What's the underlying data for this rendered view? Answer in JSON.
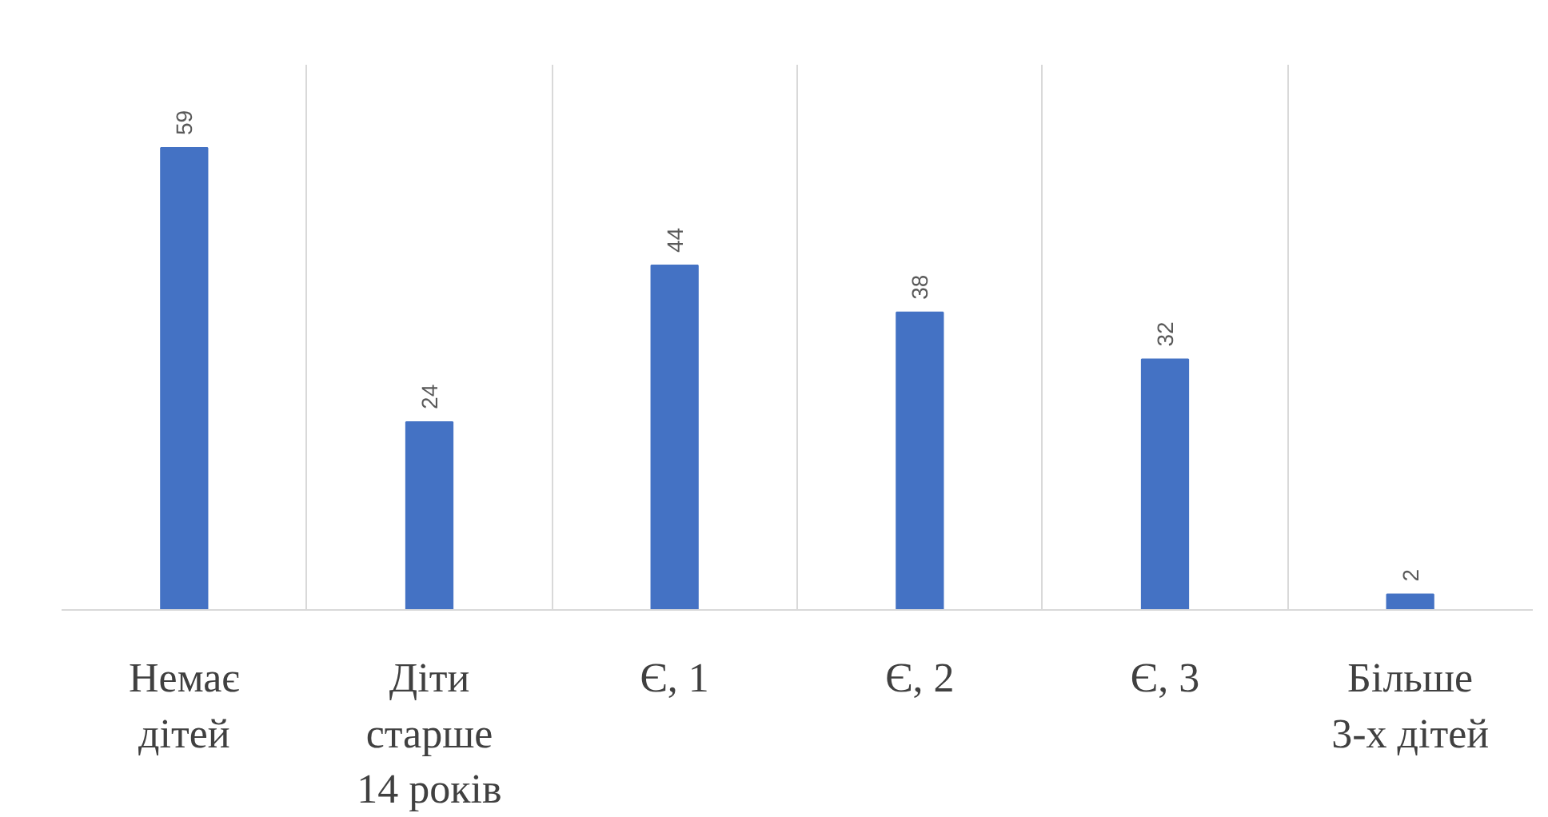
{
  "chart_data": {
    "type": "bar",
    "categories": [
      "Немає\nдітей",
      "Діти\nстарше\n14 років",
      "Є, 1",
      "Є, 2",
      "Є, 3",
      "Більше\n3-х дітей"
    ],
    "values": [
      59,
      24,
      44,
      38,
      32,
      2
    ],
    "color": "#4472c4",
    "data_labels": true,
    "grid": "x"
  }
}
